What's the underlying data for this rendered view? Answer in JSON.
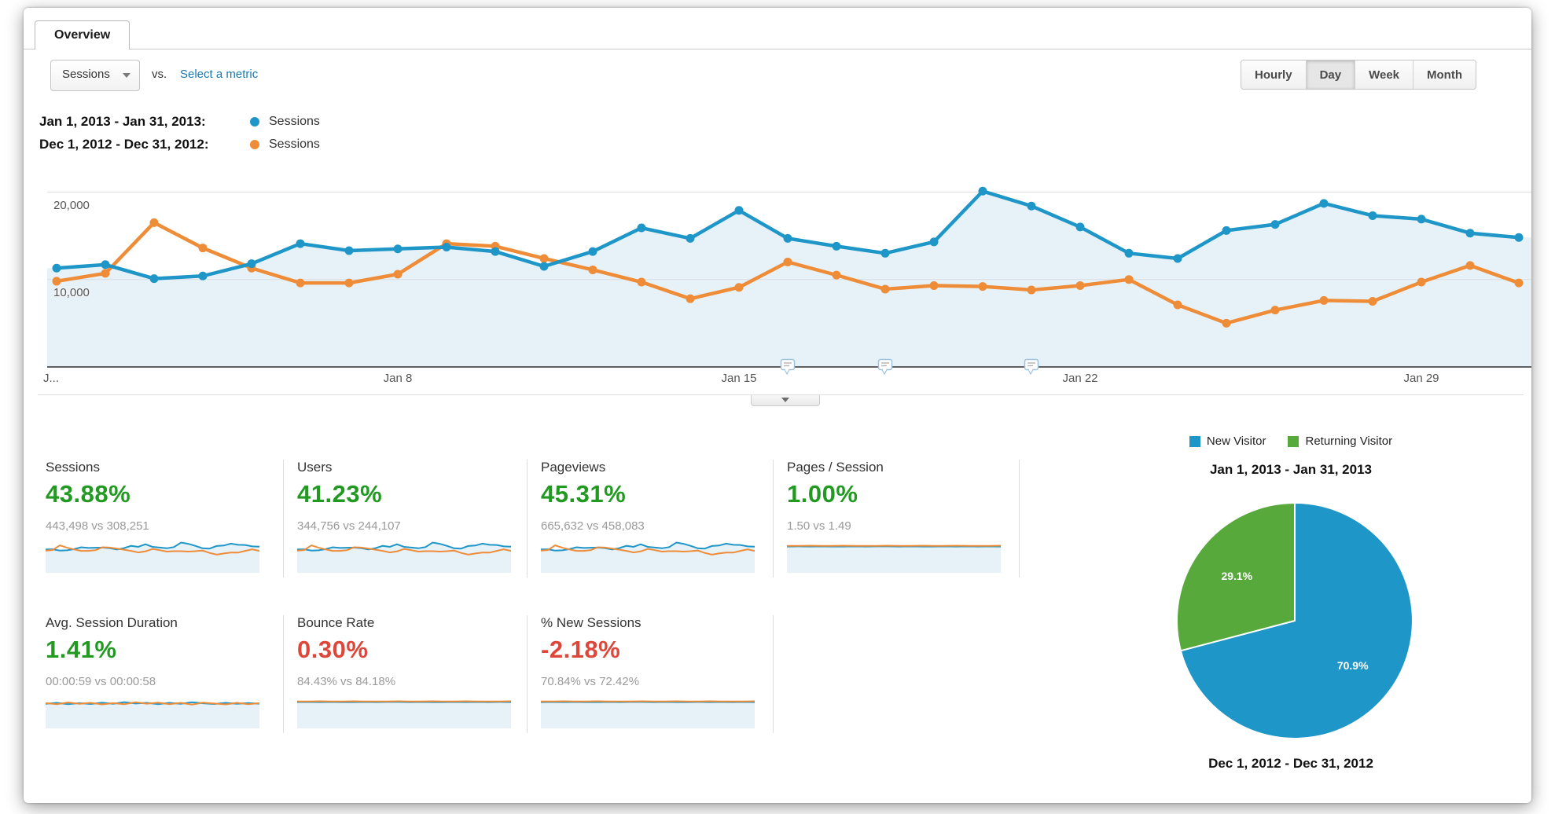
{
  "tab": {
    "label": "Overview"
  },
  "toolbar": {
    "metric_dropdown_value": "Sessions",
    "vs_label": "vs.",
    "select_metric_label": "Select a metric",
    "granularity_buttons": [
      {
        "label": "Hourly",
        "active": false
      },
      {
        "label": "Day",
        "active": true
      },
      {
        "label": "Week",
        "active": false
      },
      {
        "label": "Month",
        "active": false
      }
    ]
  },
  "colors": {
    "series_current": "#1e96c8",
    "series_compare": "#ee8c38",
    "area_fill": "#e7f1f8",
    "delta_up": "#229a22",
    "delta_down": "#dd4739",
    "pie_blue": "#1e96c8",
    "pie_green": "#58a93c",
    "link_blue": "#1a78b0"
  },
  "chart_legend": [
    {
      "range": "Jan 1, 2013 - Jan 31, 2013:",
      "series": "Sessions",
      "color": "#1e96c8"
    },
    {
      "range": "Dec 1, 2012 - Dec 31, 2012:",
      "series": "Sessions",
      "color": "#ee8c38"
    }
  ],
  "chart_data": [
    {
      "type": "line",
      "title": "Sessions by day — Jan 1, 2013 - Jan 31, 2013 vs Dec 1, 2012 - Dec 31, 2012",
      "x_tick_labels": [
        "J...",
        "Jan 8",
        "Jan 15",
        "Jan 22",
        "Jan 29"
      ],
      "x_tick_days": [
        1,
        8,
        15,
        22,
        29
      ],
      "y_tick_labels": [
        "20,000",
        "10,000"
      ],
      "y_gridlines": [
        20000,
        10000
      ],
      "ylim": [
        0,
        21500
      ],
      "grid": true,
      "legend_position": "above-left",
      "annotations_days": [
        16,
        18,
        21
      ],
      "series": [
        {
          "name": "Sessions (Jan 1, 2013 - Jan 31, 2013)",
          "color": "#1e96c8",
          "area_fill": "#e7f1f8",
          "values": [
            11300,
            11700,
            10100,
            10400,
            11800,
            14100,
            13300,
            13500,
            13700,
            13200,
            11500,
            13200,
            15900,
            14700,
            17900,
            14700,
            13800,
            13000,
            14300,
            20100,
            18400,
            16000,
            13000,
            12400,
            15600,
            16300,
            18700,
            17300,
            16900,
            15300,
            14800
          ]
        },
        {
          "name": "Sessions (Dec 1, 2012 - Dec 31, 2012)",
          "color": "#ee8c38",
          "values": [
            9800,
            10700,
            16500,
            13600,
            11300,
            9600,
            9600,
            10600,
            14100,
            13800,
            12400,
            11100,
            9700,
            7800,
            9100,
            12000,
            10500,
            8900,
            9300,
            9200,
            8800,
            9300,
            10000,
            7100,
            5000,
            6500,
            7600,
            7500,
            9700,
            11600,
            9600
          ]
        }
      ]
    },
    {
      "type": "pie",
      "title": "Jan 1, 2013 - Jan 31, 2013",
      "labels": [
        "New Visitor",
        "Returning Visitor"
      ],
      "values": [
        70.9,
        29.1
      ],
      "value_labels": [
        "70.9%",
        "29.1%"
      ],
      "colors": [
        "#1e96c8",
        "#58a93c"
      ],
      "footer": "Dec 1, 2012 - Dec 31, 2012"
    }
  ],
  "metric_cards": [
    {
      "title": "Sessions",
      "delta": "43.88%",
      "delta_color": "#229a22",
      "vs_text": "443,498 vs 308,251",
      "spark": "volatile"
    },
    {
      "title": "Users",
      "delta": "41.23%",
      "delta_color": "#229a22",
      "vs_text": "344,756 vs 244,107",
      "spark": "volatile"
    },
    {
      "title": "Pageviews",
      "delta": "45.31%",
      "delta_color": "#229a22",
      "vs_text": "665,632 vs 458,083",
      "spark": "volatile"
    },
    {
      "title": "Pages / Session",
      "delta": "1.00%",
      "delta_color": "#229a22",
      "vs_text": "1.50 vs 1.49",
      "spark": "flat"
    },
    {
      "title": "Avg. Session Duration",
      "delta": "1.41%",
      "delta_color": "#229a22",
      "vs_text": "00:00:59 vs 00:00:58",
      "spark": "duration"
    },
    {
      "title": "Bounce Rate",
      "delta": "0.30%",
      "delta_color": "#dd4739",
      "vs_text": "84.43% vs 84.18%",
      "spark": "flat"
    },
    {
      "title": "% New Sessions",
      "delta": "-2.18%",
      "delta_color": "#dd4739",
      "vs_text": "70.84% vs 72.42%",
      "spark": "flat"
    }
  ],
  "sparklines": {
    "volatile": {
      "s1": [
        0.53,
        0.54,
        0.47,
        0.48,
        0.55,
        0.66,
        0.62,
        0.63,
        0.64,
        0.61,
        0.53,
        0.61,
        0.74,
        0.68,
        0.83,
        0.68,
        0.64,
        0.6,
        0.67,
        0.93,
        0.86,
        0.74,
        0.6,
        0.58,
        0.73,
        0.76,
        0.87,
        0.8,
        0.79,
        0.71,
        0.69
      ],
      "s2": [
        0.46,
        0.5,
        0.77,
        0.63,
        0.53,
        0.45,
        0.45,
        0.49,
        0.66,
        0.64,
        0.58,
        0.52,
        0.45,
        0.36,
        0.42,
        0.56,
        0.49,
        0.41,
        0.43,
        0.43,
        0.41,
        0.43,
        0.47,
        0.33,
        0.23,
        0.3,
        0.35,
        0.35,
        0.45,
        0.54,
        0.45
      ]
    },
    "flat": {
      "s1": [
        0.7,
        0.71,
        0.7,
        0.71,
        0.7,
        0.7,
        0.71,
        0.7,
        0.71,
        0.71,
        0.7,
        0.71,
        0.7,
        0.7,
        0.71,
        0.7,
        0.71,
        0.7,
        0.71,
        0.7
      ],
      "s2": [
        0.74,
        0.74,
        0.75,
        0.74,
        0.74,
        0.75,
        0.74,
        0.74,
        0.74,
        0.75,
        0.74,
        0.74,
        0.75,
        0.74,
        0.74,
        0.75,
        0.74,
        0.74,
        0.74,
        0.75
      ]
    },
    "duration": {
      "s1": [
        0.6,
        0.66,
        0.58,
        0.64,
        0.59,
        0.67,
        0.6,
        0.7,
        0.62,
        0.66,
        0.58,
        0.66,
        0.6,
        0.69,
        0.63,
        0.59,
        0.66,
        0.6,
        0.65,
        0.61
      ],
      "s2": [
        0.64,
        0.58,
        0.68,
        0.6,
        0.66,
        0.57,
        0.64,
        0.58,
        0.69,
        0.61,
        0.67,
        0.58,
        0.66,
        0.56,
        0.67,
        0.62,
        0.57,
        0.66,
        0.58,
        0.64
      ]
    }
  },
  "pie_panel": {
    "legend": [
      {
        "label": "New Visitor",
        "color": "#1e96c8"
      },
      {
        "label": "Returning Visitor",
        "color": "#58a93c"
      }
    ]
  }
}
